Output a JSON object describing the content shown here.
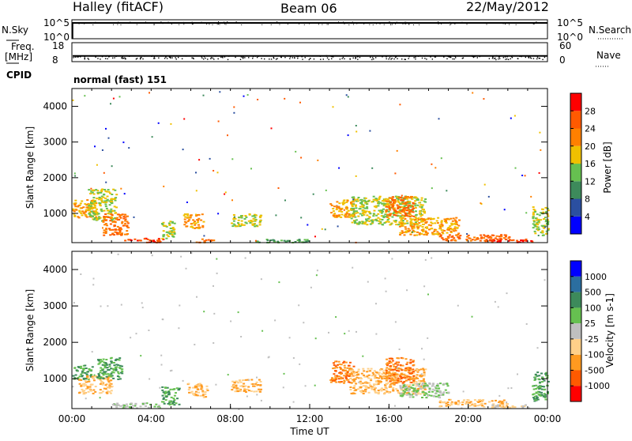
{
  "header": {
    "title": "Halley (fitACF)",
    "beam": "Beam 06",
    "date": "22/May/2012"
  },
  "status": {
    "nsky": "N.Sky",
    "freq": "Freq.",
    "freq_unit": "[MHz]",
    "cpid": "CPID",
    "nsearch": "N.Search",
    "nave": "Nave",
    "nsky_ticks": [
      "10^5",
      "10^0"
    ],
    "nsearch_ticks": [
      "10^5",
      "10^0"
    ],
    "freq_ticks": [
      "18",
      "8"
    ],
    "nave_ticks": [
      "60",
      "0"
    ],
    "cpid_text": "normal (fast) 151",
    "freq_level_mhz": 11,
    "nave_level": 30
  },
  "x_axis": {
    "label": "Time UT",
    "ticks": [
      "00:00",
      "04:00",
      "08:00",
      "12:00",
      "16:00",
      "20:00",
      "00:00"
    ]
  },
  "colors": {
    "power": [
      "#0000ff",
      "#2b4fa0",
      "#3d8a5b",
      "#66c050",
      "#f0c000",
      "#ff8000",
      "#ff5a00",
      "#ff0000"
    ],
    "velocity": [
      "#ff0000",
      "#ff5a00",
      "#ff9a20",
      "#ffd089",
      "#bfbfbf",
      "#66c050",
      "#3d8a5b",
      "#2b6ea0",
      "#0000ff"
    ]
  },
  "chart_data": [
    {
      "type": "heatmap",
      "title": "Power",
      "ylabel": "Slant Range [km]",
      "xlabel": "",
      "x_range_hours": [
        0,
        24
      ],
      "ylim": [
        180,
        4500
      ],
      "y_ticks": [
        "1000",
        "2000",
        "3000",
        "4000"
      ],
      "colorbar": {
        "label": "Power [dB]",
        "ticks": [
          "4",
          "8",
          "12",
          "16",
          "20",
          "24",
          "28"
        ],
        "range": [
          0,
          32
        ]
      },
      "regions": [
        {
          "t0": 0.0,
          "t1": 1.2,
          "r0": 900,
          "r1": 1400,
          "value": 20
        },
        {
          "t0": 0.8,
          "t1": 2.2,
          "r0": 800,
          "r1": 1700,
          "value": 16
        },
        {
          "t0": 1.5,
          "t1": 2.8,
          "r0": 400,
          "r1": 1000,
          "value": 24
        },
        {
          "t0": 2.6,
          "t1": 4.6,
          "r0": 200,
          "r1": 320,
          "value": 28
        },
        {
          "t0": 4.5,
          "t1": 5.2,
          "r0": 300,
          "r1": 800,
          "value": 16
        },
        {
          "t0": 5.6,
          "t1": 6.6,
          "r0": 600,
          "r1": 1000,
          "value": 20
        },
        {
          "t0": 6.2,
          "t1": 7.2,
          "r0": 200,
          "r1": 300,
          "value": 24
        },
        {
          "t0": 8.0,
          "t1": 9.5,
          "r0": 650,
          "r1": 1000,
          "value": 16
        },
        {
          "t0": 9.0,
          "t1": 12.0,
          "r0": 200,
          "r1": 300,
          "value": 12
        },
        {
          "t0": 13.0,
          "t1": 14.2,
          "r0": 900,
          "r1": 1400,
          "value": 20
        },
        {
          "t0": 14.0,
          "t1": 17.8,
          "r0": 700,
          "r1": 1500,
          "value": 16
        },
        {
          "t0": 15.8,
          "t1": 17.2,
          "r0": 900,
          "r1": 1500,
          "value": 24
        },
        {
          "t0": 16.5,
          "t1": 19.5,
          "r0": 400,
          "r1": 900,
          "value": 20
        },
        {
          "t0": 18.5,
          "t1": 22.2,
          "r0": 250,
          "r1": 420,
          "value": 24
        },
        {
          "t0": 20.8,
          "t1": 23.2,
          "r0": 200,
          "r1": 300,
          "value": 28
        },
        {
          "t0": 23.2,
          "t1": 24.0,
          "r0": 400,
          "r1": 1200,
          "value": 16
        }
      ]
    },
    {
      "type": "heatmap",
      "title": "Velocity",
      "ylabel": "Slant Range [km]",
      "xlabel": "Time UT",
      "x_range_hours": [
        0,
        24
      ],
      "ylim": [
        180,
        4500
      ],
      "y_ticks": [
        "1000",
        "2000",
        "3000",
        "4000"
      ],
      "colorbar": {
        "label": "Velocity [m s-1]",
        "ticks": [
          "1000",
          "500",
          "100",
          "25",
          "-25",
          "-100",
          "-500",
          "-1000"
        ]
      },
      "regions": [
        {
          "t0": 0.0,
          "t1": 1.0,
          "r0": 1000,
          "r1": 1400,
          "value": 100
        },
        {
          "t0": 0.3,
          "t1": 2.0,
          "r0": 600,
          "r1": 1100,
          "value": -100
        },
        {
          "t0": 1.2,
          "t1": 2.5,
          "r0": 1000,
          "r1": 1600,
          "value": 100
        },
        {
          "t0": 2.0,
          "t1": 4.5,
          "r0": 200,
          "r1": 350,
          "value": 25
        },
        {
          "t0": 4.5,
          "t1": 5.4,
          "r0": 300,
          "r1": 800,
          "value": 100
        },
        {
          "t0": 5.8,
          "t1": 6.8,
          "r0": 500,
          "r1": 900,
          "value": -100
        },
        {
          "t0": 8.0,
          "t1": 9.5,
          "r0": 650,
          "r1": 1000,
          "value": -100
        },
        {
          "t0": 13.0,
          "t1": 14.2,
          "r0": 900,
          "r1": 1500,
          "value": -500
        },
        {
          "t0": 14.0,
          "t1": 17.8,
          "r0": 600,
          "r1": 1300,
          "value": -100
        },
        {
          "t0": 15.8,
          "t1": 17.2,
          "r0": 900,
          "r1": 1600,
          "value": -500
        },
        {
          "t0": 16.5,
          "t1": 19.0,
          "r0": 500,
          "r1": 900,
          "value": 25
        },
        {
          "t0": 18.5,
          "t1": 22.0,
          "r0": 250,
          "r1": 450,
          "value": -100
        },
        {
          "t0": 21.0,
          "t1": 23.0,
          "r0": 200,
          "r1": 300,
          "value": -25
        },
        {
          "t0": 23.2,
          "t1": 24.0,
          "r0": 400,
          "r1": 1200,
          "value": 100
        }
      ]
    }
  ]
}
